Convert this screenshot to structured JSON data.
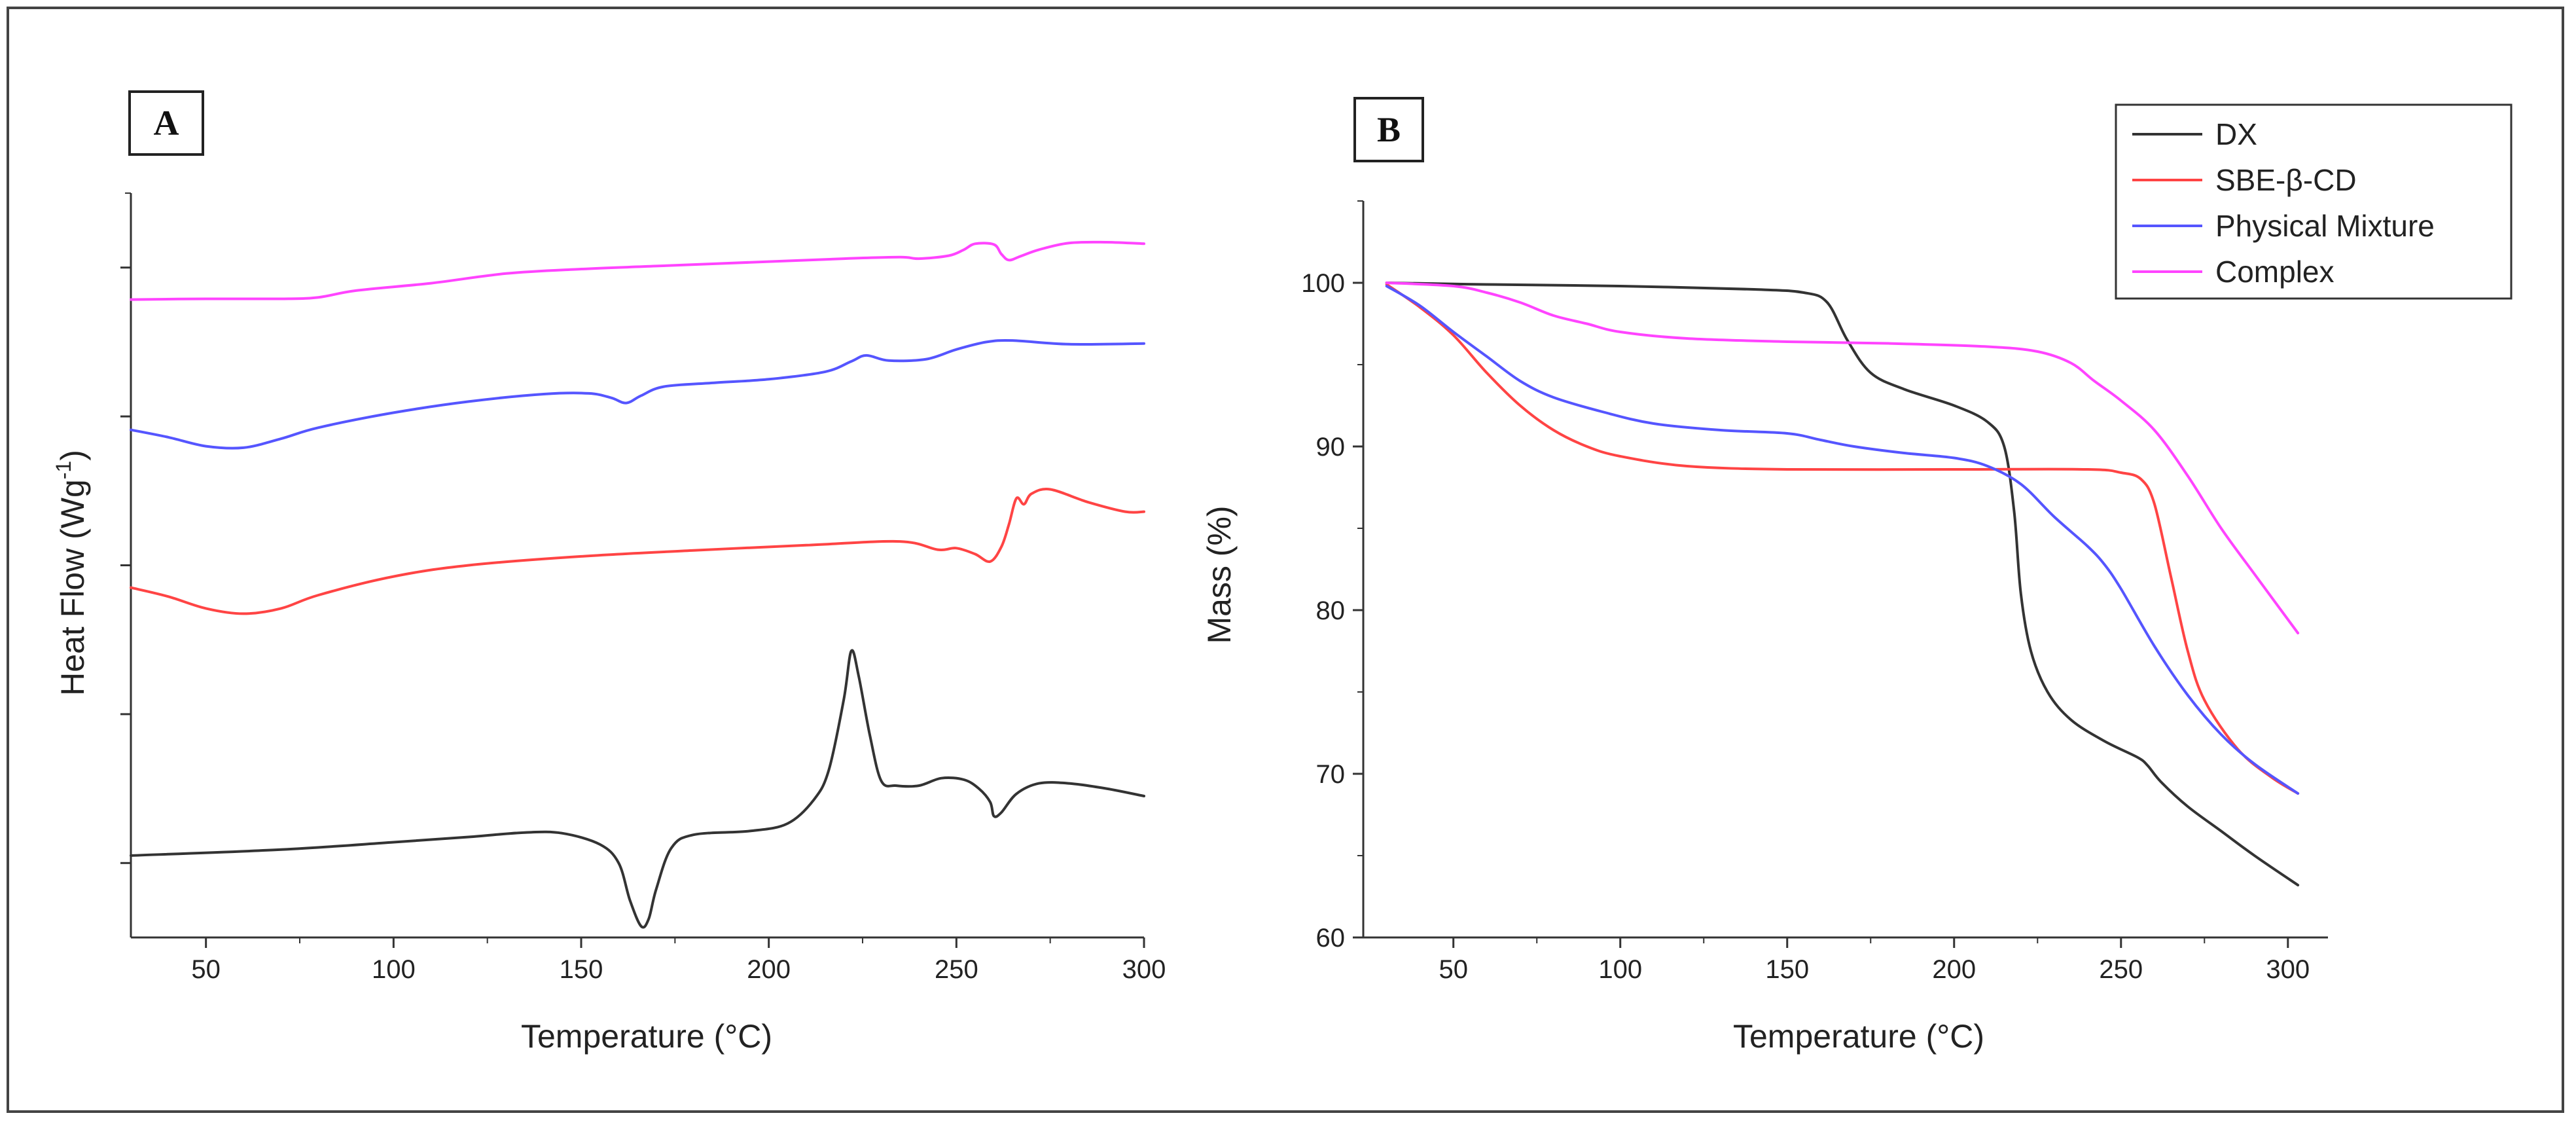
{
  "panels": [
    {
      "id": "A",
      "letter": "A",
      "xlabel": "Temperature (°C)",
      "ylabel": "Heat Flow (Wg",
      "ylabel_sup": "-1",
      "xlim": [
        30,
        300
      ],
      "ylim": [
        0,
        100
      ],
      "x_ticks": [
        50,
        100,
        150,
        200,
        250,
        300
      ],
      "y_ticks_values": [
        10,
        30,
        50,
        70,
        90
      ],
      "y_tick_labels_shown": false
    },
    {
      "id": "B",
      "letter": "B",
      "xlabel": "Temperature (°C)",
      "ylabel": "Mass (%)",
      "xlim": [
        23,
        312
      ],
      "ylim": [
        60,
        105
      ],
      "x_ticks": [
        50,
        100,
        150,
        200,
        250,
        300
      ],
      "y_ticks": [
        60,
        70,
        80,
        90,
        100
      ],
      "legend_position": "top-right"
    }
  ],
  "chart_data": [
    {
      "type": "line",
      "title": "A",
      "xlabel": "Temperature (°C)",
      "ylabel": "Heat Flow (Wg-1)",
      "xlim": [
        30,
        300
      ],
      "ylim": [
        0,
        100
      ],
      "series": [
        {
          "name": "Complex",
          "color": "#ff44ff",
          "points": [
            [
              30,
              85.7
            ],
            [
              50,
              85.8
            ],
            [
              70,
              85.8
            ],
            [
              80,
              86.0
            ],
            [
              90,
              86.9
            ],
            [
              110,
              87.9
            ],
            [
              130,
              89.2
            ],
            [
              150,
              89.8
            ],
            [
              170,
              90.2
            ],
            [
              200,
              90.8
            ],
            [
              220,
              91.2
            ],
            [
              235,
              91.4
            ],
            [
              240,
              91.2
            ],
            [
              248,
              91.6
            ],
            [
              252,
              92.4
            ],
            [
              255,
              93.2
            ],
            [
              260,
              93.1
            ],
            [
              262,
              91.8
            ],
            [
              264,
              91.0
            ],
            [
              267,
              91.5
            ],
            [
              272,
              92.4
            ],
            [
              280,
              93.3
            ],
            [
              290,
              93.4
            ],
            [
              300,
              93.2
            ]
          ]
        },
        {
          "name": "Physical Mixture",
          "color": "#5555ff",
          "points": [
            [
              30,
              68.2
            ],
            [
              40,
              67.2
            ],
            [
              50,
              66.0
            ],
            [
              60,
              65.8
            ],
            [
              70,
              67.0
            ],
            [
              80,
              68.5
            ],
            [
              100,
              70.5
            ],
            [
              120,
              72.0
            ],
            [
              140,
              73.0
            ],
            [
              152,
              73.1
            ],
            [
              158,
              72.5
            ],
            [
              162,
              71.8
            ],
            [
              166,
              72.8
            ],
            [
              172,
              74.0
            ],
            [
              185,
              74.5
            ],
            [
              200,
              75.0
            ],
            [
              215,
              76.0
            ],
            [
              222,
              77.4
            ],
            [
              226,
              78.2
            ],
            [
              232,
              77.5
            ],
            [
              242,
              77.7
            ],
            [
              250,
              79.0
            ],
            [
              258,
              80.0
            ],
            [
              265,
              80.2
            ],
            [
              280,
              79.7
            ],
            [
              300,
              79.8
            ]
          ]
        },
        {
          "name": "SBE-β-CD",
          "color": "#ff4444",
          "points": [
            [
              30,
              47.0
            ],
            [
              40,
              45.8
            ],
            [
              50,
              44.2
            ],
            [
              60,
              43.5
            ],
            [
              70,
              44.2
            ],
            [
              80,
              46.0
            ],
            [
              100,
              48.5
            ],
            [
              120,
              50.0
            ],
            [
              150,
              51.2
            ],
            [
              180,
              52.0
            ],
            [
              210,
              52.7
            ],
            [
              235,
              53.2
            ],
            [
              245,
              52.1
            ],
            [
              250,
              52.3
            ],
            [
              255,
              51.5
            ],
            [
              259,
              50.5
            ],
            [
              262,
              52.5
            ],
            [
              264,
              55.5
            ],
            [
              266,
              59.0
            ],
            [
              268,
              58.2
            ],
            [
              270,
              59.6
            ],
            [
              275,
              60.2
            ],
            [
              285,
              58.5
            ],
            [
              295,
              57.2
            ],
            [
              300,
              57.2
            ]
          ]
        },
        {
          "name": "DX",
          "color": "#333333",
          "points": [
            [
              30,
              11.0
            ],
            [
              70,
              11.8
            ],
            [
              100,
              12.8
            ],
            [
              120,
              13.5
            ],
            [
              135,
              14.1
            ],
            [
              145,
              14.0
            ],
            [
              155,
              12.5
            ],
            [
              160,
              10.0
            ],
            [
              163,
              5.0
            ],
            [
              166,
              1.5
            ],
            [
              168,
              2.5
            ],
            [
              170,
              6.5
            ],
            [
              174,
              12.0
            ],
            [
              180,
              13.8
            ],
            [
              195,
              14.3
            ],
            [
              205,
              15.3
            ],
            [
              212,
              18.5
            ],
            [
              216,
              22.5
            ],
            [
              220,
              32.0
            ],
            [
              222,
              38.5
            ],
            [
              224,
              35.0
            ],
            [
              227,
              27.0
            ],
            [
              230,
              21.0
            ],
            [
              234,
              20.4
            ],
            [
              240,
              20.4
            ],
            [
              246,
              21.4
            ],
            [
              252,
              21.2
            ],
            [
              256,
              20.0
            ],
            [
              259,
              18.2
            ],
            [
              260,
              16.3
            ],
            [
              262,
              16.8
            ],
            [
              266,
              19.3
            ],
            [
              272,
              20.7
            ],
            [
              280,
              20.7
            ],
            [
              290,
              20.0
            ],
            [
              300,
              19.0
            ]
          ]
        }
      ]
    },
    {
      "type": "line",
      "title": "B",
      "xlabel": "Temperature (°C)",
      "ylabel": "Mass (%)",
      "xlim": [
        23,
        312
      ],
      "ylim": [
        60,
        105
      ],
      "legend": [
        "DX",
        "SBE-β-CD",
        "Physical Mixture",
        "Complex"
      ],
      "series": [
        {
          "name": "DX",
          "color": "#333333",
          "points": [
            [
              30,
              100.0
            ],
            [
              60,
              99.9
            ],
            [
              100,
              99.8
            ],
            [
              140,
              99.6
            ],
            [
              155,
              99.4
            ],
            [
              162,
              98.8
            ],
            [
              168,
              96.5
            ],
            [
              175,
              94.5
            ],
            [
              185,
              93.5
            ],
            [
              200,
              92.5
            ],
            [
              210,
              91.5
            ],
            [
              215,
              90.0
            ],
            [
              218,
              86.0
            ],
            [
              220,
              81.0
            ],
            [
              223,
              77.5
            ],
            [
              228,
              75.0
            ],
            [
              235,
              73.3
            ],
            [
              245,
              72.0
            ],
            [
              255,
              71.0
            ],
            [
              258,
              70.5
            ],
            [
              262,
              69.5
            ],
            [
              270,
              68.0
            ],
            [
              280,
              66.5
            ],
            [
              290,
              65.0
            ],
            [
              303,
              63.2
            ]
          ]
        },
        {
          "name": "SBE-β-CD",
          "color": "#ff4444",
          "points": [
            [
              30,
              99.9
            ],
            [
              40,
              98.5
            ],
            [
              50,
              96.8
            ],
            [
              60,
              94.5
            ],
            [
              70,
              92.5
            ],
            [
              80,
              91.0
            ],
            [
              90,
              90.0
            ],
            [
              100,
              89.4
            ],
            [
              120,
              88.8
            ],
            [
              150,
              88.6
            ],
            [
              200,
              88.6
            ],
            [
              240,
              88.6
            ],
            [
              250,
              88.4
            ],
            [
              256,
              88.0
            ],
            [
              260,
              86.5
            ],
            [
              265,
              82.0
            ],
            [
              270,
              77.5
            ],
            [
              275,
              74.5
            ],
            [
              285,
              71.5
            ],
            [
              295,
              69.8
            ],
            [
              303,
              68.8
            ]
          ]
        },
        {
          "name": "Physical Mixture",
          "color": "#5555ff",
          "points": [
            [
              30,
              99.8
            ],
            [
              40,
              98.6
            ],
            [
              50,
              97.0
            ],
            [
              60,
              95.5
            ],
            [
              70,
              94.0
            ],
            [
              80,
              93.0
            ],
            [
              95,
              92.1
            ],
            [
              110,
              91.4
            ],
            [
              130,
              91.0
            ],
            [
              150,
              90.8
            ],
            [
              160,
              90.4
            ],
            [
              170,
              90.0
            ],
            [
              185,
              89.6
            ],
            [
              200,
              89.3
            ],
            [
              210,
              88.8
            ],
            [
              220,
              87.7
            ],
            [
              230,
              85.7
            ],
            [
              240,
              83.9
            ],
            [
              245,
              82.8
            ],
            [
              250,
              81.3
            ],
            [
              260,
              77.8
            ],
            [
              270,
              74.8
            ],
            [
              280,
              72.4
            ],
            [
              290,
              70.6
            ],
            [
              303,
              68.8
            ]
          ]
        },
        {
          "name": "Complex",
          "color": "#ff44ff",
          "points": [
            [
              30,
              100.0
            ],
            [
              50,
              99.8
            ],
            [
              60,
              99.4
            ],
            [
              70,
              98.8
            ],
            [
              80,
              98.0
            ],
            [
              90,
              97.5
            ],
            [
              100,
              97.0
            ],
            [
              120,
              96.6
            ],
            [
              150,
              96.4
            ],
            [
              180,
              96.3
            ],
            [
              210,
              96.1
            ],
            [
              225,
              95.8
            ],
            [
              235,
              95.1
            ],
            [
              242,
              94.0
            ],
            [
              250,
              92.8
            ],
            [
              260,
              91.0
            ],
            [
              270,
              88.2
            ],
            [
              280,
              85.0
            ],
            [
              290,
              82.2
            ],
            [
              303,
              78.6
            ]
          ]
        }
      ]
    }
  ]
}
